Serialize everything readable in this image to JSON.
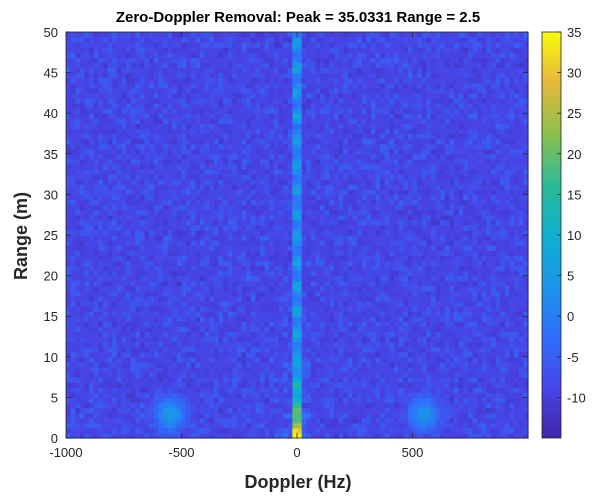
{
  "chart_data": {
    "type": "heatmap",
    "title": "Zero-Doppler Removal: Peak = 35.0331    Range = 2.5",
    "xlabel": "Doppler (Hz)",
    "ylabel": "Range (m)",
    "xlim": [
      -1000,
      1000
    ],
    "ylim": [
      0,
      50
    ],
    "x_ticks": [
      -1000,
      -500,
      0,
      500
    ],
    "y_ticks": [
      0,
      5,
      10,
      15,
      20,
      25,
      30,
      35,
      40,
      45,
      50
    ],
    "colorbar": {
      "colormap": "parula",
      "clim": [
        -15,
        35
      ],
      "ticks": [
        -10,
        -5,
        0,
        5,
        10,
        15,
        20,
        25,
        30,
        35
      ]
    },
    "peak": {
      "value": 35.0331,
      "doppler_hz": 0,
      "range_m": 2.5
    },
    "features": [
      {
        "description": "strong vertical stripe",
        "doppler_hz": 0,
        "range_m": [
          0,
          50
        ],
        "level_max": 35
      },
      {
        "description": "weak blob",
        "doppler_hz": -550,
        "range_m": [
          1,
          5
        ],
        "level": 5
      },
      {
        "description": "weak blob",
        "doppler_hz": 550,
        "range_m": [
          1,
          5
        ],
        "level": 4
      }
    ],
    "background_level": -10,
    "grid": false
  },
  "colors": {
    "parula_low": "#3e26a8",
    "parula_mid": "#1eb3b3",
    "parula_high": "#f9fb0e",
    "axis": "#262626"
  }
}
